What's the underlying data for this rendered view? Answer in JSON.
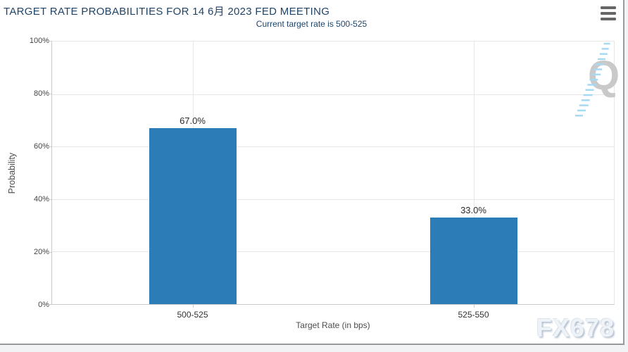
{
  "header": {
    "title": "TARGET RATE PROBABILITIES FOR 14 6月 2023 FED MEETING",
    "subtitle": "Current target rate is 500-525",
    "menu_icon": "hamburger-icon"
  },
  "chart_data": {
    "type": "bar",
    "title": "TARGET RATE PROBABILITIES FOR 14 6月 2023 FED MEETING",
    "subtitle": "Current target rate is 500-525",
    "categories": [
      "500-525",
      "525-550"
    ],
    "values": [
      67.0,
      33.0
    ],
    "data_labels": [
      "67.0%",
      "33.0%"
    ],
    "xlabel": "Target Rate (in bps)",
    "ylabel": "Probability",
    "ylim": [
      0,
      100
    ],
    "ytick_labels": [
      "100%",
      "80%",
      "60%",
      "40%",
      "20%",
      "0%"
    ],
    "grid": true,
    "legend": false,
    "bar_color": "#2b7cb7"
  },
  "watermarks": {
    "logo_letter": "Q",
    "site": "FX678"
  },
  "colors": {
    "page_bg": "#f2f3f4",
    "panel_border": "#999999",
    "title_text": "#1e4469",
    "subtitle_text": "#1e4469",
    "axis_label": "#4d4d4d",
    "tick_label": "#444444",
    "category_label": "#333333",
    "data_label": "#2b2b2b",
    "bar": "#2b7cb7",
    "gridline": "#e7e7e7",
    "axis_line": "#c9c9c9",
    "menu_icon": "#666666",
    "watermark_q": "#c9c9c9",
    "watermark_swoosh": "#a6d9f2",
    "fx678_text": "#eef3f8"
  }
}
